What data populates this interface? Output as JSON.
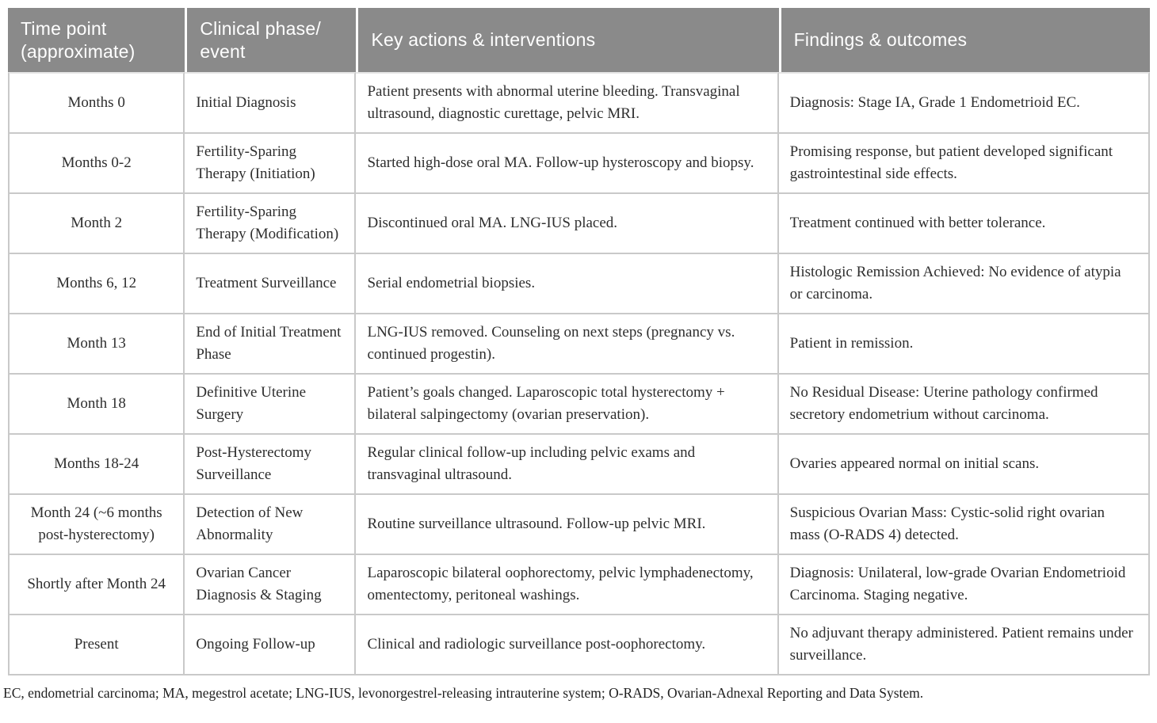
{
  "colors": {
    "header_bg": "#8a8a8a",
    "header_text": "#ffffff",
    "grid_line": "#c9c9c9",
    "body_text": "#2e2e2e"
  },
  "table": {
    "columns": [
      "Time point (approximate)",
      "Clinical phase/event",
      "Key actions & interventions",
      "Findings & outcomes"
    ],
    "rows": [
      {
        "time": "Months 0",
        "phase": "Initial Diagnosis",
        "actions": "Patient presents with abnormal uterine bleeding. Transvaginal ultrasound, diagnostic curettage, pelvic MRI.",
        "findings": "Diagnosis: Stage IA, Grade 1 Endometrioid EC."
      },
      {
        "time": "Months 0-2",
        "phase": "Fertility-Sparing Therapy (Initiation)",
        "actions": "Started high-dose oral MA. Follow-up hysteroscopy and biopsy.",
        "findings": "Promising response, but patient developed significant gastrointestinal side effects."
      },
      {
        "time": "Month 2",
        "phase": "Fertility-Sparing Therapy (Modification)",
        "actions": "Discontinued oral MA. LNG-IUS placed.",
        "findings": "Treatment continued with better tolerance."
      },
      {
        "time": "Months 6, 12",
        "phase": "Treatment Surveillance",
        "actions": "Serial endometrial biopsies.",
        "findings": "Histologic Remission Achieved: No evidence of atypia or carcinoma."
      },
      {
        "time": "Month 13",
        "phase": "End of Initial Treatment Phase",
        "actions": "LNG-IUS removed. Counseling on next steps (pregnancy vs. continued progestin).",
        "findings": "Patient in remission."
      },
      {
        "time": "Month 18",
        "phase": "Definitive Uterine Surgery",
        "actions": "Patient’s goals changed. Laparoscopic total hysterectomy + bilateral salpingectomy (ovarian preservation).",
        "findings": "No Residual Disease: Uterine pathology confirmed secretory endometrium without carcinoma."
      },
      {
        "time": "Months 18-24",
        "phase": "Post-Hysterectomy Surveillance",
        "actions": "Regular clinical follow-up including pelvic exams and transvaginal ultrasound.",
        "findings": "Ovaries appeared normal on initial scans."
      },
      {
        "time": "Month 24 (~6 months post-hysterectomy)",
        "phase": "Detection of New Abnormality",
        "actions": "Routine surveillance ultrasound. Follow-up pelvic MRI.",
        "findings": "Suspicious Ovarian Mass: Cystic-solid right ovarian mass (O-RADS 4) detected."
      },
      {
        "time": "Shortly after Month 24",
        "phase": "Ovarian Cancer Diagnosis & Staging",
        "actions": "Laparoscopic bilateral oophorectomy, pelvic lymphadenectomy, omentectomy, peritoneal washings.",
        "findings": "Diagnosis: Unilateral, low-grade Ovarian Endometrioid Carcinoma. Staging negative."
      },
      {
        "time": "Present",
        "phase": "Ongoing Follow-up",
        "actions": "Clinical and radiologic surveillance post-oophorectomy.",
        "findings": "No adjuvant therapy administered. Patient remains under surveillance."
      }
    ],
    "footnote": "EC, endometrial carcinoma; MA, megestrol acetate; LNG-IUS, levonorgestrel-releasing intrauterine system; O-RADS, Ovarian-Adnexal Reporting and Data System."
  }
}
